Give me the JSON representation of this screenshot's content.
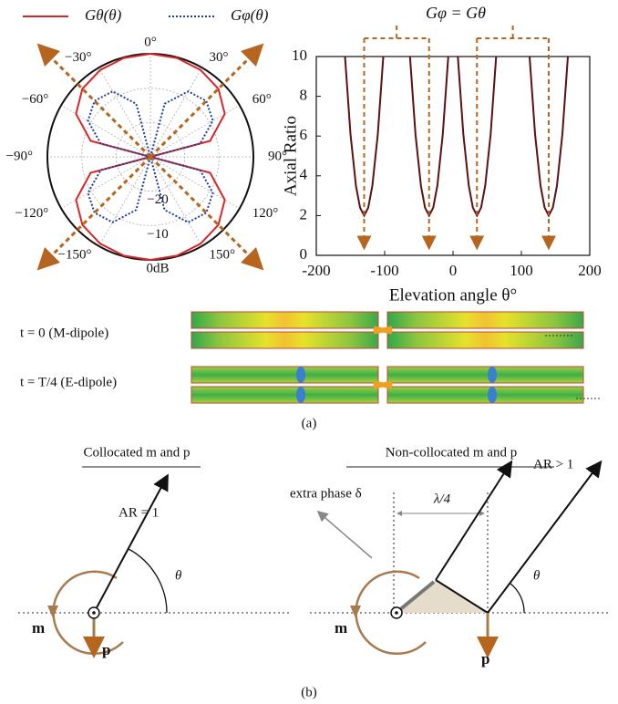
{
  "chart_data": [
    {
      "type": "polar",
      "angles": [
        -180,
        -165,
        -150,
        -135,
        -120,
        -105,
        -90,
        -75,
        -60,
        -45,
        -30,
        -15,
        0,
        15,
        30,
        45,
        60,
        75,
        90,
        105,
        120,
        135,
        150,
        165,
        180
      ],
      "series": [
        {
          "name": "Gθ(θ)",
          "color": "#d62728",
          "style": "solid",
          "values": [
            0,
            -0.2,
            -0.8,
            -2,
            -5,
            -12,
            -30,
            -12,
            -5,
            -2,
            -0.8,
            -0.2,
            0,
            -0.2,
            -0.8,
            -2,
            -5,
            -12,
            -30,
            -12,
            -5,
            -2,
            -0.8,
            -0.2,
            0
          ]
        },
        {
          "name": "Gφ(θ)",
          "color": "#1f3f9f",
          "style": "dotted",
          "values": [
            -30,
            -14,
            -8,
            -7,
            -9,
            -15,
            -30,
            -15,
            -9,
            -7,
            -8,
            -14,
            -30,
            -14,
            -8,
            -7,
            -9,
            -15,
            -30,
            -15,
            -9,
            -7,
            -8,
            -14,
            -30
          ]
        }
      ],
      "rlim": [
        -30,
        0
      ],
      "rticks": [
        {
          "value": 0,
          "label": "0dB"
        },
        {
          "value": -10,
          "label": "−10"
        },
        {
          "value": -20,
          "label": "−20"
        }
      ],
      "angle_ticks": [
        {
          "value": 0,
          "label": "0°"
        },
        {
          "value": 30,
          "label": "30°"
        },
        {
          "value": 60,
          "label": "60°"
        },
        {
          "value": 90,
          "label": "90°"
        },
        {
          "value": 120,
          "label": "120°"
        },
        {
          "value": 150,
          "label": "150°"
        },
        {
          "value": -150,
          "label": "−150°"
        },
        {
          "value": -120,
          "label": "−120°"
        },
        {
          "value": -90,
          "label": "−90°"
        },
        {
          "value": -60,
          "label": "−60°"
        },
        {
          "value": -30,
          "label": "−30°"
        }
      ]
    },
    {
      "type": "line",
      "annotation": "Gφ = Gθ",
      "xlabel": "Elevation angle θ°",
      "ylabel": "Axial Ratio",
      "x": [
        -158,
        -150,
        -142,
        -136,
        -130,
        -124,
        -118,
        -110,
        -102,
        -82,
        -63,
        -55,
        -47,
        -41,
        -35,
        -29,
        -23,
        -15,
        -7,
        0,
        7,
        15,
        23,
        29,
        35,
        41,
        47,
        55,
        63,
        88,
        112,
        120,
        128,
        134,
        140,
        146,
        152,
        160,
        168
      ],
      "series": [
        {
          "color": "#5a1212",
          "values": [
            10,
            6.1,
            3.5,
            2.4,
            2,
            2.4,
            3.5,
            6.1,
            10,
            null,
            10,
            6.1,
            3.5,
            2.4,
            2,
            2.4,
            3.5,
            6.1,
            10,
            null,
            10,
            6.1,
            3.5,
            2.4,
            2,
            2.4,
            3.5,
            6.1,
            10,
            null,
            10,
            6.1,
            3.5,
            2.4,
            2,
            2.4,
            3.5,
            6.1,
            10
          ]
        }
      ],
      "xlim": [
        -200,
        200
      ],
      "ylim": [
        0,
        10
      ],
      "xticks": [
        -200,
        -100,
        0,
        100,
        200
      ],
      "yticks": [
        0,
        2,
        4,
        6,
        8,
        10
      ]
    }
  ],
  "panel_a": {
    "rows": [
      "t = 0 (M-dipole)",
      "t = T/4 (E-dipole)"
    ],
    "caption": "(a)"
  },
  "panel_b": {
    "left_title": "Collocated m and p",
    "right_title": "Non-collocated m and p",
    "left_ar": "AR = 1",
    "right_ar": "AR > 1",
    "extra_phase": "extra phase δ",
    "spacing": "λ/4",
    "angle_left": "θ",
    "angle_right": "θ",
    "m_left": "m",
    "p_left": "p",
    "m_right": "m",
    "p_right": "p",
    "caption": "(b)"
  }
}
